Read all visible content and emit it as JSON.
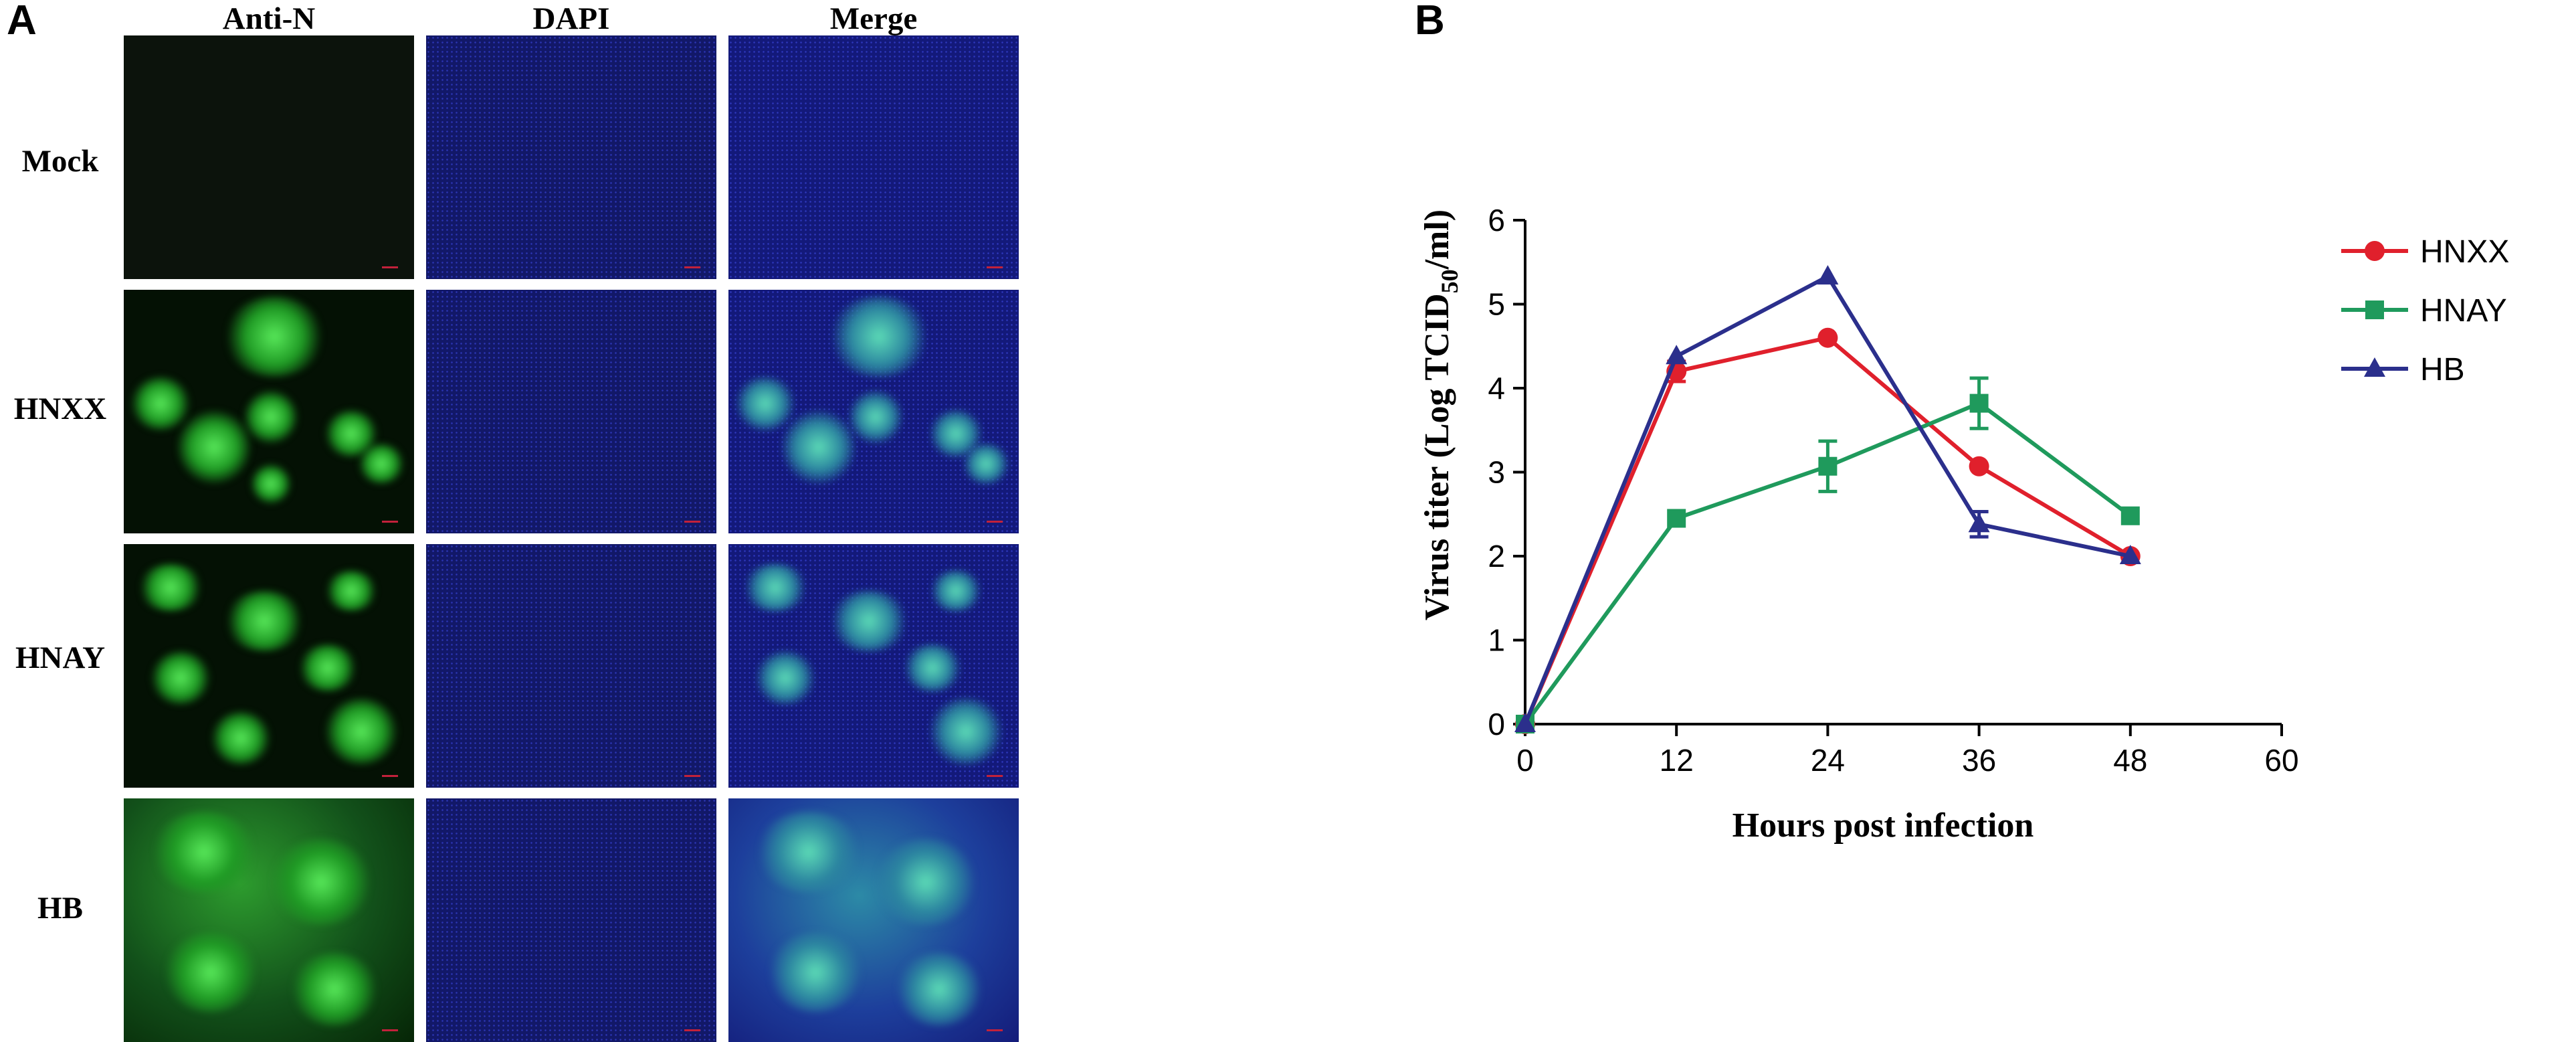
{
  "panel_a": {
    "letter": "A",
    "columns": [
      "Anti-N",
      "DAPI",
      "Merge"
    ],
    "rows": [
      "Mock",
      "HNXX",
      "HNAY",
      "HB"
    ]
  },
  "panel_b": {
    "letter": "B",
    "ylabel_main": "Virus titer (Log TCID",
    "ylabel_sub": "50",
    "ylabel_tail": "/ml)"
  },
  "chart_data": {
    "type": "line",
    "title": "",
    "xlabel": "Hours post infection",
    "ylabel": "Virus titer (Log TCID50/ml)",
    "xlim": [
      0,
      60
    ],
    "ylim": [
      0,
      6
    ],
    "xticks": [
      0,
      12,
      24,
      36,
      48,
      60
    ],
    "yticks": [
      0,
      1,
      2,
      3,
      4,
      5,
      6
    ],
    "legend_position": "right",
    "grid": false,
    "series": [
      {
        "name": "HNXX",
        "color": "#e0202c",
        "marker": "circle",
        "x": [
          0,
          12,
          24,
          36,
          48
        ],
        "y": [
          0,
          4.2,
          4.6,
          3.07,
          2.0
        ],
        "err": [
          0,
          0.12,
          0,
          0,
          0
        ]
      },
      {
        "name": "HNAY",
        "color": "#1f9a5c",
        "marker": "square",
        "x": [
          0,
          12,
          24,
          36,
          48
        ],
        "y": [
          0,
          2.45,
          3.07,
          3.82,
          2.48
        ],
        "err": [
          0,
          0,
          0.3,
          0.3,
          0
        ]
      },
      {
        "name": "HB",
        "color": "#2b2f8c",
        "marker": "triangle",
        "x": [
          0,
          12,
          24,
          36,
          48
        ],
        "y": [
          0,
          4.38,
          5.33,
          2.38,
          2.0
        ],
        "err": [
          0,
          0,
          0,
          0.15,
          0
        ]
      }
    ]
  }
}
